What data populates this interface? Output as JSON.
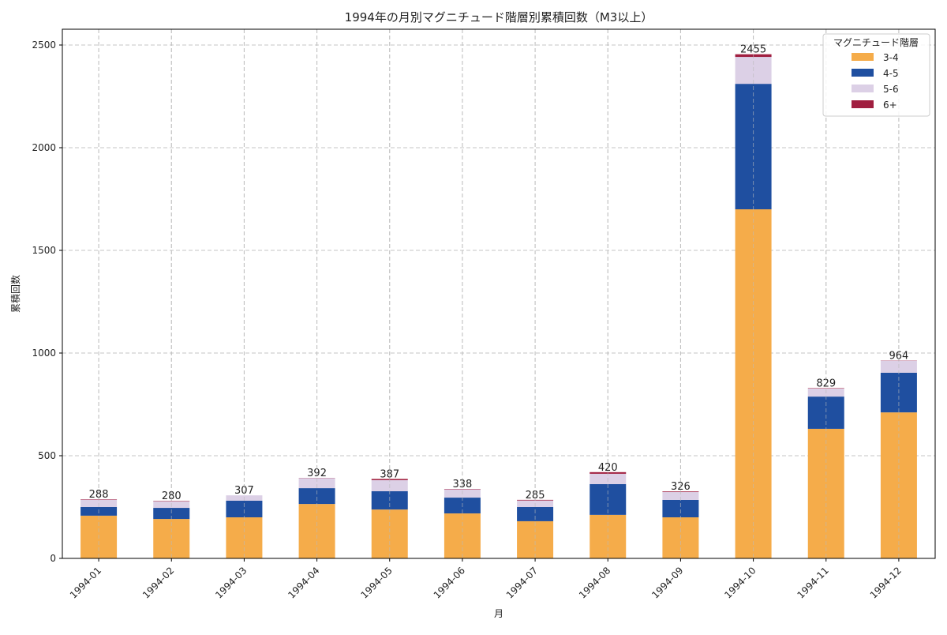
{
  "chart_data": {
    "type": "bar",
    "stacked": true,
    "title": "1994年の月別マグニチュード階層別累積回数（M3以上）",
    "xlabel": "月",
    "ylabel": "累積回数",
    "ylim": [
      0,
      2580
    ],
    "yticks": [
      0,
      500,
      1000,
      1500,
      2000,
      2500
    ],
    "grid": true,
    "categories": [
      "1994-01",
      "1994-02",
      "1994-03",
      "1994-04",
      "1994-05",
      "1994-06",
      "1994-07",
      "1994-08",
      "1994-09",
      "1994-10",
      "1994-11",
      "1994-12"
    ],
    "totals": [
      288,
      280,
      307,
      392,
      387,
      338,
      285,
      420,
      326,
      2455,
      829,
      964
    ],
    "series": [
      {
        "name": "3-4",
        "color": "#f5ac4a",
        "values": [
          208,
          192,
          200,
          265,
          238,
          219,
          181,
          212,
          200,
          1700,
          631,
          711
        ]
      },
      {
        "name": "4-5",
        "color": "#1f4fa0",
        "values": [
          42,
          54,
          81,
          77,
          89,
          77,
          69,
          150,
          85,
          611,
          157,
          193
        ]
      },
      {
        "name": "5-6",
        "color": "#dcd0e6",
        "values": [
          36,
          32,
          26,
          49,
          54,
          40,
          32,
          50,
          38,
          131,
          39,
          59
        ]
      },
      {
        "name": "6+",
        "color": "#a01f40",
        "values": [
          2,
          2,
          0,
          1,
          6,
          2,
          3,
          8,
          3,
          13,
          2,
          1
        ]
      }
    ],
    "legend": {
      "title": "マグニチュード階層",
      "placement": "top-right"
    }
  }
}
